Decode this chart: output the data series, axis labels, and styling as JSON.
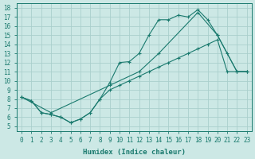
{
  "xlabel": "Humidex (Indice chaleur)",
  "bg_color": "#cce8e5",
  "line_color": "#1a7a6e",
  "grid_color": "#aacfcc",
  "xlim": [
    -0.5,
    23.5
  ],
  "ylim": [
    4.5,
    18.5
  ],
  "xticks": [
    0,
    1,
    2,
    3,
    4,
    5,
    6,
    7,
    8,
    9,
    10,
    11,
    12,
    13,
    14,
    15,
    16,
    17,
    18,
    19,
    20,
    21,
    22,
    23
  ],
  "yticks": [
    5,
    6,
    7,
    8,
    9,
    10,
    11,
    12,
    13,
    14,
    15,
    16,
    17,
    18
  ],
  "line1_x": [
    0,
    1,
    2,
    3,
    4,
    5,
    6,
    7,
    8,
    9,
    10,
    11,
    12,
    13,
    14,
    15,
    16,
    17,
    18,
    19,
    20,
    21,
    22,
    23
  ],
  "line1_y": [
    8.2,
    7.8,
    6.5,
    6.3,
    6.0,
    5.4,
    5.8,
    6.5,
    8.0,
    9.8,
    12.0,
    12.1,
    13.0,
    15.0,
    16.7,
    16.7,
    17.2,
    17.0,
    17.8,
    16.7,
    15.0,
    13.0,
    11.0,
    11.0
  ],
  "line2_x": [
    0,
    3,
    9,
    12,
    14,
    18,
    20,
    22,
    23
  ],
  "line2_y": [
    8.2,
    6.5,
    9.5,
    11.0,
    13.0,
    17.5,
    15.0,
    11.0,
    11.0
  ],
  "line3_x": [
    0,
    1,
    2,
    3,
    4,
    5,
    6,
    7,
    8,
    9,
    10,
    11,
    12,
    13,
    14,
    15,
    16,
    17,
    18,
    19,
    20,
    21,
    22,
    23
  ],
  "line3_y": [
    8.2,
    7.8,
    6.5,
    6.3,
    6.0,
    5.4,
    5.8,
    6.5,
    8.0,
    9.0,
    9.5,
    10.0,
    10.5,
    11.0,
    11.5,
    12.0,
    12.5,
    13.0,
    13.5,
    14.0,
    14.5,
    11.0,
    11.0,
    11.0
  ]
}
